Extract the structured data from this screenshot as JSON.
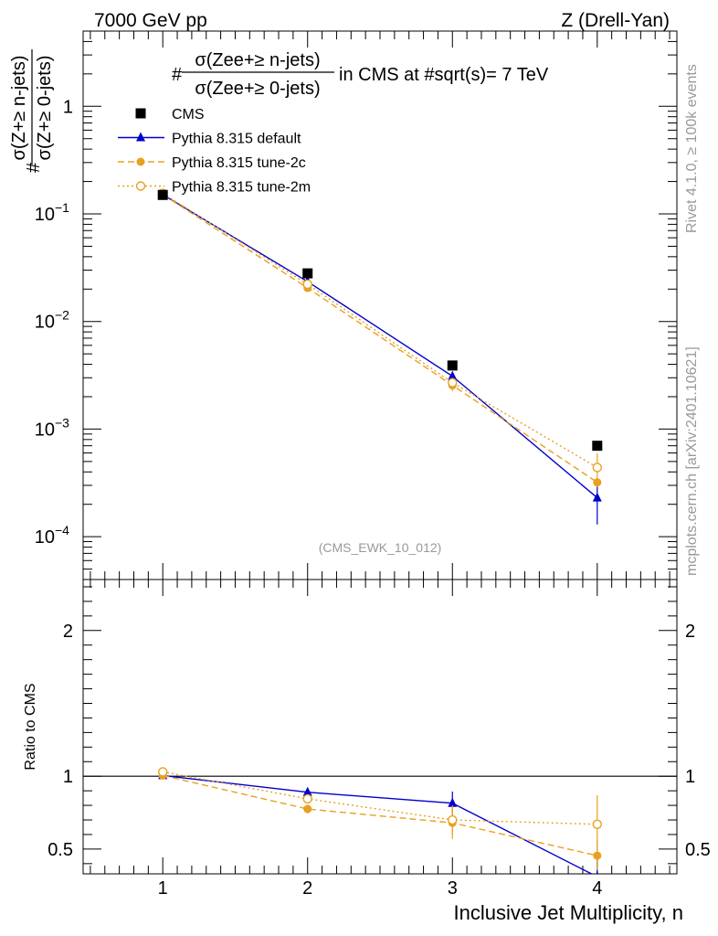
{
  "header": {
    "left": "7000 GeV pp",
    "right": "Z (Drell-Yan)"
  },
  "side_labels": {
    "rivet": "Rivet 4.1.0, ≥ 100k events",
    "mcplots": "mcplots.cern.ch [arXiv:2401.10621]"
  },
  "plot_title": {
    "prefix": "#",
    "numerator": "σ(Zee+≥ n-jets)",
    "denominator": "σ(Zee+≥ 0-jets)",
    "suffix": "in CMS at #sqrt(s)= 7 TeV"
  },
  "analysis_id": "(CMS_EWK_10_012)",
  "chart_data": {
    "type": "scatter",
    "main": {
      "yscale": "log",
      "ylim": [
        4e-05,
        5
      ],
      "ylabel": {
        "prefix": "#",
        "numerator": "σ(Z+≥ n-jets)",
        "denominator": "σ(Z+≥ 0-jets)"
      },
      "yticks": [
        {
          "value": 1,
          "base": "1",
          "exp": ""
        },
        {
          "value": 0.1,
          "base": "10",
          "exp": "−1"
        },
        {
          "value": 0.01,
          "base": "10",
          "exp": "−2"
        },
        {
          "value": 0.001,
          "base": "10",
          "exp": "−3"
        },
        {
          "value": 0.0001,
          "base": "10",
          "exp": "−4"
        }
      ]
    },
    "ratio": {
      "ylabel": "Ratio to CMS",
      "ylim": [
        0.33,
        2.35
      ],
      "yticks": [
        {
          "value": 2,
          "label": "2"
        },
        {
          "value": 1,
          "label": "1"
        },
        {
          "value": 0.5,
          "label": "0.5"
        }
      ]
    },
    "x": {
      "label": "Inclusive Jet Multiplicity, n",
      "xlim": [
        0.45,
        4.55
      ],
      "ticks": [
        1,
        2,
        3,
        4
      ],
      "tick_labels": [
        "1",
        "2",
        "3",
        "4"
      ]
    },
    "legend_position": "top-left",
    "series": [
      {
        "name": "CMS",
        "color": "#000000",
        "marker": "square",
        "line": "none",
        "x": [
          1,
          2,
          3,
          4
        ],
        "y": [
          0.15,
          0.028,
          0.0039,
          0.0007
        ],
        "yerr_low": [
          0,
          0,
          0,
          0
        ],
        "yerr_high": [
          0,
          0,
          0,
          0
        ]
      },
      {
        "name": "Pythia 8.315 default",
        "color": "#0000cc",
        "marker": "triangle",
        "line": "solid",
        "x": [
          1,
          2,
          3,
          4
        ],
        "y": [
          0.151,
          0.0235,
          0.0031,
          0.00023
        ],
        "yerr_low": [
          0,
          0.0008,
          0.0003,
          0.0001
        ],
        "yerr_high": [
          0,
          0.0008,
          0.0003,
          8e-05
        ],
        "ratio": [
          1.005,
          0.89,
          0.815,
          0.31
        ],
        "ratio_err_low": [
          0.01,
          0.03,
          0.08,
          0.15
        ],
        "ratio_err_high": [
          0.01,
          0.03,
          0.08,
          0.15
        ]
      },
      {
        "name": "Pythia 8.315 tune-2c",
        "color": "#e8a020",
        "marker": "circle",
        "line": "dashed",
        "x": [
          1,
          2,
          3,
          4
        ],
        "y": [
          0.151,
          0.0205,
          0.00255,
          0.00032
        ],
        "yerr_low": [
          0,
          0.0008,
          0.0003,
          3e-05
        ],
        "yerr_high": [
          0,
          0.0008,
          0.0003,
          3e-05
        ],
        "ratio": [
          1.005,
          0.775,
          0.68,
          0.455
        ],
        "ratio_err_low": [
          0.01,
          0.03,
          0.11,
          0.1
        ],
        "ratio_err_high": [
          0.01,
          0.03,
          0.11,
          0.1
        ]
      },
      {
        "name": "Pythia 8.315 tune-2m",
        "color": "#e8a020",
        "marker": "open-circle",
        "line": "dotted",
        "x": [
          1,
          2,
          3,
          4
        ],
        "y": [
          0.155,
          0.0222,
          0.0027,
          0.00044
        ],
        "yerr_low": [
          0,
          0.0008,
          0.0003,
          0.0001
        ],
        "yerr_high": [
          0,
          0.0008,
          0.0003,
          0.00016
        ],
        "ratio": [
          1.03,
          0.845,
          0.7,
          0.67
        ],
        "ratio_err_low": [
          0.01,
          0.03,
          0.1,
          0.22
        ],
        "ratio_err_high": [
          0.01,
          0.03,
          0.1,
          0.2
        ]
      }
    ]
  }
}
